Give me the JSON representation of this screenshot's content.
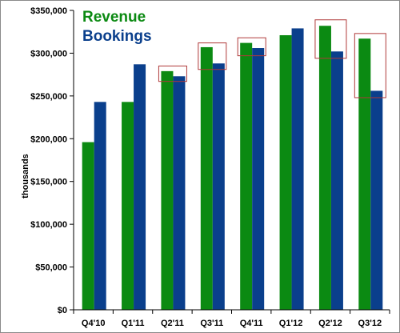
{
  "chart_data": {
    "type": "bar",
    "categories": [
      "Q4'10",
      "Q1'11",
      "Q2'11",
      "Q3'11",
      "Q4'11",
      "Q1'12",
      "Q2'12",
      "Q3'12"
    ],
    "series": [
      {
        "name": "Revenue",
        "color": "#0b8a12",
        "values": [
          196000,
          243000,
          279000,
          307000,
          312000,
          321000,
          332000,
          317000
        ]
      },
      {
        "name": "Bookings",
        "color": "#0a3f8c",
        "values": [
          243000,
          287000,
          273000,
          288000,
          306000,
          329000,
          302000,
          256000
        ]
      }
    ],
    "ylabel": "thousands",
    "ylim": [
      0,
      350000
    ],
    "yticks": [
      0,
      50000,
      100000,
      150000,
      200000,
      250000,
      300000,
      350000
    ],
    "ytick_labels": [
      "$0",
      "$50,000",
      "$100,000",
      "$150,000",
      "$200,000",
      "$250,000",
      "$300,000",
      "$350,000"
    ],
    "grid": false,
    "legend": "top-left",
    "highlight_color": "#b03a3a",
    "highlights": [
      {
        "category": "Q2'11",
        "range": [
          267000,
          285000
        ]
      },
      {
        "category": "Q3'11",
        "range": [
          281000,
          312000
        ]
      },
      {
        "category": "Q4'11",
        "range": [
          297000,
          318000
        ]
      },
      {
        "category": "Q2'12",
        "range": [
          294000,
          339000
        ]
      },
      {
        "category": "Q3'12",
        "range": [
          248000,
          323000
        ]
      }
    ]
  }
}
